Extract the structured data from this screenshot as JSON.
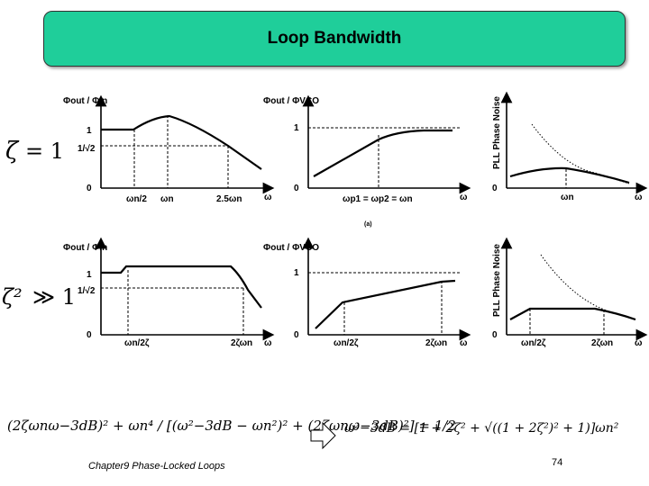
{
  "title": "Loop Bandwidth",
  "rows": [
    {
      "condition_lhs": "ζ",
      "condition_rel": "= 1"
    },
    {
      "condition_lhs": "ζ²",
      "condition_rel": "≫ 1"
    }
  ],
  "panel_labels": {
    "ratio_in": "Φout / Φin",
    "ratio_vco": "Φout / ΦVCO",
    "noise_axis": "PLL Phase Noise",
    "one": "1",
    "zero": "0",
    "omega": "ω",
    "sqrt2_frac": "1/√2"
  },
  "row1_ticks": {
    "a": "ωn/2",
    "b": "ωn",
    "c": "2.5ωn",
    "vco": "ωp1 = ωp2 = ωn",
    "noise": "ωn"
  },
  "row2_ticks": {
    "a": "ωn/2ζ",
    "b": "2ζωn",
    "vco_a": "ωn/2ζ",
    "vco_b": "2ζωn",
    "noise_a": "ωn/2ζ",
    "noise_b": "2ζωn"
  },
  "sublabel": "(a)",
  "equation_left": "(2ζωnω−3dB)² + ωn⁴ / [(ω²−3dB − ωn²)² + (2ζωnω−3dB)²] = 1/2",
  "equation_right": "ω²−3dB = [1 + 2ζ² + √((1 + 2ζ²)² + 1)]ωn²",
  "footer": {
    "course": "Chapter9 Phase-Locked Loops",
    "page": "74"
  },
  "colors": {
    "title_bg": "#1fce9a"
  }
}
